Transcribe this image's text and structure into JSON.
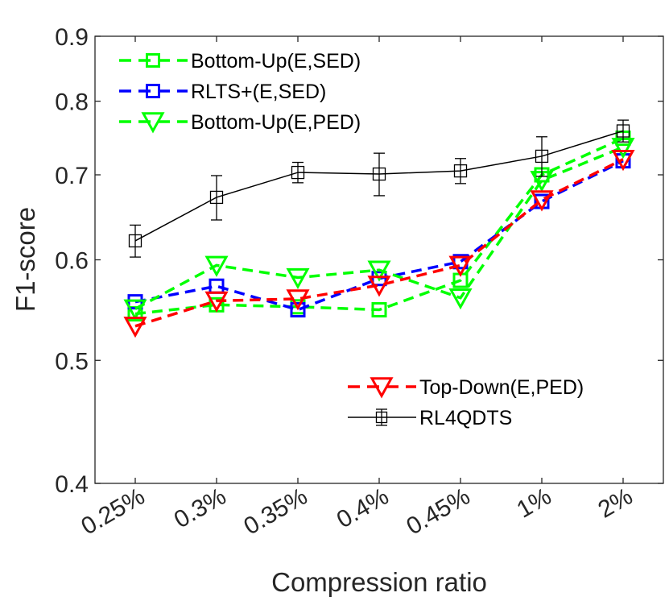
{
  "chart_data": {
    "type": "line",
    "xlabel": "Compression ratio",
    "ylabel": "F1-score",
    "yscale": "log",
    "ylim": [
      0.4,
      0.9
    ],
    "yticks": [
      {
        "value": 0.4,
        "label": "0.4"
      },
      {
        "value": 0.5,
        "label": "0.5"
      },
      {
        "value": 0.6,
        "label": "0.6"
      },
      {
        "value": 0.7,
        "label": "0.7"
      },
      {
        "value": 0.8,
        "label": "0.8"
      },
      {
        "value": 0.9,
        "label": "0.9"
      }
    ],
    "categories": [
      "0.25%",
      "0.3%",
      "0.35%",
      "0.4%",
      "0.45%",
      "1%",
      "2%"
    ],
    "grid": false,
    "series": [
      {
        "name": "Bottom-Up(E,SED)",
        "color": "#00ff00",
        "dash": "dashed",
        "marker": "square",
        "values": [
          0.544,
          0.553,
          0.551,
          0.548,
          0.578,
          0.7,
          0.748
        ]
      },
      {
        "name": "RLTS+(E,SED)",
        "color": "#0000ff",
        "dash": "dashed",
        "marker": "square",
        "values": [
          0.556,
          0.572,
          0.548,
          0.58,
          0.598,
          0.667,
          0.718
        ]
      },
      {
        "name": "Bottom-Up(E,PED)",
        "color": "#00ff00",
        "dash": "dashed",
        "marker": "triangle-down",
        "values": [
          0.549,
          0.594,
          0.581,
          0.589,
          0.56,
          0.693,
          0.736
        ]
      },
      {
        "name": "Top-Down(E,PED)",
        "color": "#ff0000",
        "dash": "dashed",
        "marker": "triangle-down",
        "values": [
          0.532,
          0.557,
          0.559,
          0.573,
          0.594,
          0.669,
          0.72
        ]
      },
      {
        "name": "RL4QDTS",
        "color": "#000000",
        "dash": "solid",
        "marker": "square",
        "values": [
          0.621,
          0.672,
          0.703,
          0.701,
          0.705,
          0.724,
          0.758
        ],
        "errors": [
          0.018,
          0.027,
          0.013,
          0.027,
          0.016,
          0.026,
          0.015
        ]
      }
    ],
    "legend": {
      "top_left": [
        "Bottom-Up(E,SED)",
        "RLTS+(E,SED)",
        "Bottom-Up(E,PED)"
      ],
      "bottom_right": [
        "Top-Down(E,PED)",
        "RL4QDTS"
      ]
    }
  }
}
